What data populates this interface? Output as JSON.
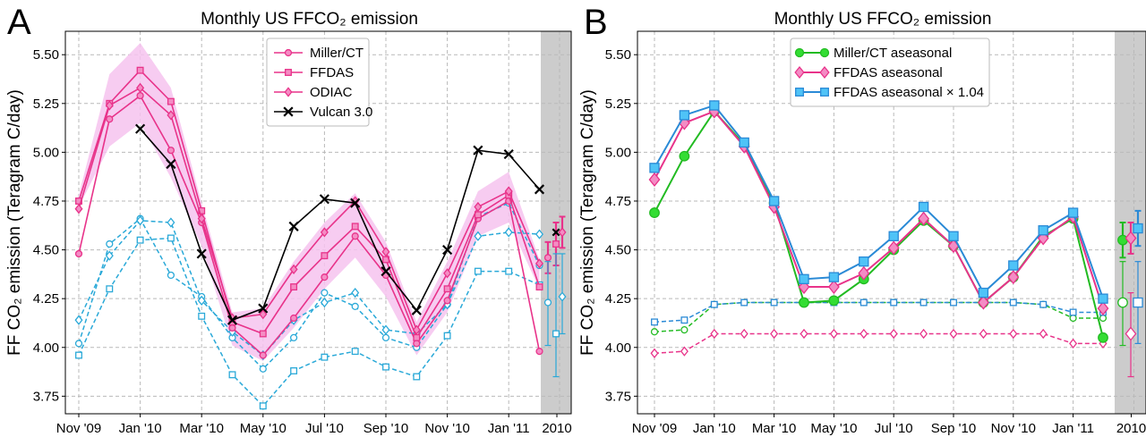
{
  "chart_data": [
    {
      "type": "line",
      "panel_label": "A",
      "title": "Monthly US FFCO₂ emission",
      "ylabel": "FF CO₂ emission (Teragram C/day)",
      "xlabel": "",
      "ylim": [
        3.66,
        5.62
      ],
      "yticks": [
        "3.75",
        "4.00",
        "4.25",
        "4.50",
        "4.75",
        "5.00",
        "5.25",
        "5.50"
      ],
      "xticks": [
        "Nov '09",
        "Jan '10",
        "Mar '10",
        "May '10",
        "Jul '10",
        "Sep '10",
        "Nov '10",
        "Jan '11",
        "2010"
      ],
      "grid": true,
      "legend_position": "top-center",
      "shaded_region": "2010",
      "x": [
        "Nov '09",
        "Dec '09",
        "Jan '10",
        "Feb '10",
        "Mar '10",
        "Apr '10",
        "May '10",
        "Jun '10",
        "Jul '10",
        "Aug '10",
        "Sep '10",
        "Oct '10",
        "Nov '10",
        "Dec '10",
        "Jan '11",
        "Feb '11"
      ],
      "series": [
        {
          "name": "Miller/CT",
          "color": "#e8338a",
          "marker": "circle",
          "values": [
            4.48,
            5.17,
            5.29,
            5.01,
            4.64,
            4.1,
            3.96,
            4.15,
            4.36,
            4.57,
            4.37,
            4.02,
            4.24,
            4.66,
            4.75,
            3.98
          ]
        },
        {
          "name": "FFDAS",
          "color": "#e8338a",
          "marker": "square",
          "values": [
            4.75,
            5.25,
            5.42,
            5.26,
            4.7,
            4.13,
            4.07,
            4.31,
            4.47,
            4.62,
            4.45,
            4.05,
            4.3,
            4.68,
            4.78,
            4.31
          ]
        },
        {
          "name": "ODIAC",
          "color": "#e8338a",
          "marker": "diamond",
          "values": [
            4.71,
            5.24,
            5.33,
            5.19,
            4.66,
            4.15,
            4.17,
            4.4,
            4.59,
            4.75,
            4.49,
            4.09,
            4.38,
            4.72,
            4.8,
            4.43
          ]
        },
        {
          "name": "Vulcan 3.0",
          "color": "#000000",
          "marker": "x",
          "values": [
            null,
            null,
            5.12,
            4.94,
            4.48,
            4.14,
            4.2,
            4.62,
            4.76,
            4.74,
            4.39,
            4.19,
            4.5,
            5.01,
            4.99,
            4.81
          ]
        },
        {
          "name": "",
          "style": "dashed",
          "color": "#2aa9d8",
          "marker": "open-circle",
          "values": [
            4.02,
            4.53,
            4.66,
            4.37,
            4.26,
            4.05,
            3.89,
            4.05,
            4.28,
            4.21,
            4.05,
            4.0,
            4.22,
            4.67,
            4.74,
            4.42
          ]
        },
        {
          "name": "",
          "style": "dashed",
          "color": "#2aa9d8",
          "marker": "open-square",
          "values": [
            3.96,
            4.3,
            4.55,
            4.56,
            4.16,
            3.86,
            3.7,
            3.88,
            3.95,
            3.98,
            3.9,
            3.85,
            4.06,
            4.39,
            4.39,
            4.32
          ]
        },
        {
          "name": "",
          "style": "dashed",
          "color": "#2aa9d8",
          "marker": "open-diamond",
          "values": [
            4.14,
            4.47,
            4.65,
            4.64,
            4.24,
            4.08,
            3.96,
            4.14,
            4.23,
            4.28,
            4.09,
            4.07,
            4.22,
            4.57,
            4.59,
            4.58
          ]
        }
      ],
      "band": {
        "lower": [
          4.72,
          5.03,
          5.15,
          4.87,
          4.52,
          4.01,
          3.93,
          4.1,
          4.3,
          4.46,
          4.26,
          3.96,
          4.18,
          4.57,
          4.64,
          4.3
        ],
        "upper": [
          4.78,
          5.4,
          5.56,
          5.33,
          4.74,
          4.18,
          4.2,
          4.44,
          4.64,
          4.79,
          4.54,
          4.13,
          4.44,
          4.8,
          4.9,
          4.45
        ]
      },
      "annual_2010": [
        {
          "color": "#e8338a",
          "marker": "circle",
          "value": 4.46,
          "low": 4.38,
          "high": 4.54
        },
        {
          "color": "#e8338a",
          "marker": "square",
          "value": 4.53,
          "low": 4.42,
          "high": 4.64
        },
        {
          "color": "#e8338a",
          "marker": "diamond",
          "value": 4.59,
          "low": 4.51,
          "high": 4.67
        },
        {
          "color": "#000000",
          "marker": "x",
          "value": 4.59
        },
        {
          "color": "#2aa9d8",
          "marker": "open-circle",
          "value": 4.23,
          "low": 4.01,
          "high": 4.44
        },
        {
          "color": "#2aa9d8",
          "marker": "open-square",
          "value": 4.07,
          "low": 3.85,
          "high": 4.48
        },
        {
          "color": "#2aa9d8",
          "marker": "open-diamond",
          "value": 4.26,
          "low": 4.07,
          "high": 4.48
        }
      ]
    },
    {
      "type": "line",
      "panel_label": "B",
      "title": "Monthly US FFCO₂ emission",
      "ylabel": "FF CO₂ emission (Teragram C/day)",
      "xlabel": "",
      "ylim": [
        3.66,
        5.62
      ],
      "yticks": [
        "3.75",
        "4.00",
        "4.25",
        "4.50",
        "4.75",
        "5.00",
        "5.25",
        "5.50"
      ],
      "xticks": [
        "Nov '09",
        "Jan '10",
        "Mar '10",
        "May '10",
        "Jul '10",
        "Sep '10",
        "Nov '10",
        "Jan '11",
        "2010"
      ],
      "grid": true,
      "legend_position": "top-center",
      "shaded_region": "2010",
      "x": [
        "Nov '09",
        "Dec '09",
        "Jan '10",
        "Feb '10",
        "Mar '10",
        "Apr '10",
        "May '10",
        "Jun '10",
        "Jul '10",
        "Aug '10",
        "Sep '10",
        "Oct '10",
        "Nov '10",
        "Dec '10",
        "Jan '11",
        "Feb '11"
      ],
      "series": [
        {
          "name": "Miller/CT aseasonal",
          "color": "#22bb22",
          "marker": "circle",
          "values": [
            4.69,
            4.98,
            5.21,
            5.04,
            4.74,
            4.23,
            4.24,
            4.35,
            4.5,
            4.65,
            4.52,
            4.23,
            4.36,
            4.57,
            4.66,
            4.05
          ]
        },
        {
          "name": "FFDAS aseasonal",
          "color": "#e8338a",
          "marker": "diamond",
          "values": [
            4.86,
            5.15,
            5.21,
            5.03,
            4.72,
            4.31,
            4.31,
            4.38,
            4.51,
            4.66,
            4.52,
            4.23,
            4.36,
            4.56,
            4.67,
            4.2
          ]
        },
        {
          "name": "FFDAS aseasonal × 1.04",
          "color": "#2a8ad6",
          "marker": "square",
          "values": [
            4.92,
            5.19,
            5.24,
            5.05,
            4.75,
            4.35,
            4.36,
            4.44,
            4.57,
            4.72,
            4.57,
            4.28,
            4.42,
            4.6,
            4.69,
            4.25
          ]
        },
        {
          "name": "",
          "style": "dashed",
          "color": "#22bb22",
          "marker": "open-circle",
          "values": [
            4.08,
            4.09,
            4.22,
            4.23,
            4.23,
            4.23,
            4.23,
            4.23,
            4.23,
            4.23,
            4.23,
            4.23,
            4.23,
            4.22,
            4.15,
            4.15
          ]
        },
        {
          "name": "",
          "style": "dashed",
          "color": "#e8338a",
          "marker": "open-diamond",
          "values": [
            3.97,
            3.98,
            4.07,
            4.07,
            4.07,
            4.07,
            4.07,
            4.07,
            4.07,
            4.07,
            4.07,
            4.07,
            4.07,
            4.07,
            4.02,
            4.02
          ]
        },
        {
          "name": "",
          "style": "dashed",
          "color": "#2a8ad6",
          "marker": "open-square",
          "values": [
            4.13,
            4.14,
            4.22,
            4.23,
            4.23,
            4.23,
            4.23,
            4.23,
            4.23,
            4.23,
            4.23,
            4.23,
            4.23,
            4.22,
            4.18,
            4.18
          ]
        }
      ],
      "annual_2010": [
        {
          "color": "#22bb22",
          "marker": "circle",
          "value": 4.55,
          "low": 4.46,
          "high": 4.64
        },
        {
          "color": "#e8338a",
          "marker": "diamond",
          "value": 4.56,
          "low": 4.48,
          "high": 4.64
        },
        {
          "color": "#2a8ad6",
          "marker": "square",
          "value": 4.61,
          "low": 4.52,
          "high": 4.7
        },
        {
          "color": "#22bb22",
          "marker": "open-circle",
          "value": 4.23,
          "low": 4.01,
          "high": 4.44
        },
        {
          "color": "#e8338a",
          "marker": "open-diamond",
          "value": 4.07,
          "low": 3.85,
          "high": 4.28
        },
        {
          "color": "#2a8ad6",
          "marker": "open-square",
          "value": 4.23,
          "low": 4.02,
          "high": 4.44
        }
      ]
    }
  ]
}
